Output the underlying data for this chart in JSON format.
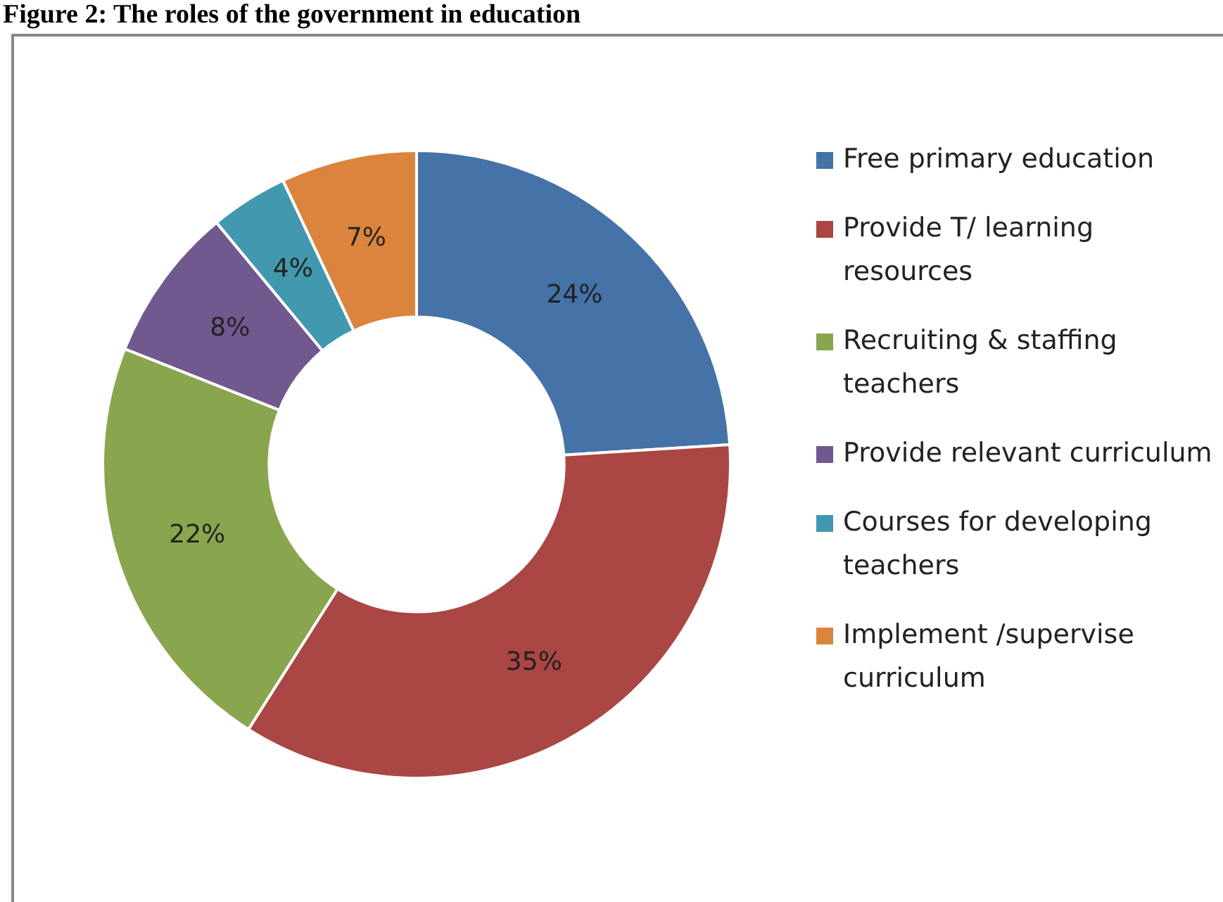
{
  "chart_data": {
    "type": "donut",
    "title": "Figure 2: The roles of the government in education",
    "categories": [
      "Free primary education",
      "Provide T/ learning resources",
      "Recruiting & staffing teachers",
      "Provide relevant curriculum",
      "Courses for developing teachers",
      "Implement /supervise curriculum"
    ],
    "values": [
      24,
      35,
      22,
      8,
      4,
      7
    ],
    "value_labels": [
      "24%",
      "35%",
      "22%",
      "8%",
      "4%",
      "7%"
    ],
    "colors": [
      "#4572a7",
      "#aa4643",
      "#89a54e",
      "#71588f",
      "#4198af",
      "#db843d"
    ],
    "legend": "right"
  }
}
